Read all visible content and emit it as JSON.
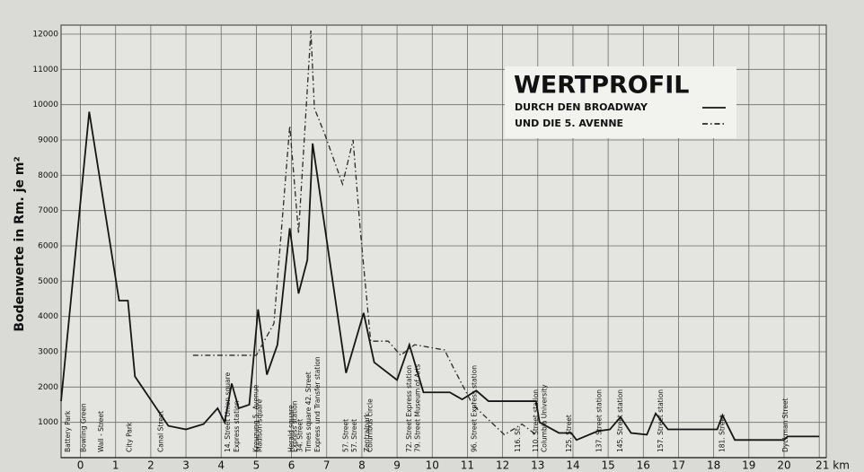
{
  "chart_data": {
    "type": "line",
    "title": "WERTPROFIL",
    "ylabel": "Bodenwerte in Rm. je m²",
    "xlim": [
      -0.55,
      21.2
    ],
    "ylim": [
      0,
      12000
    ],
    "xticks": [
      0,
      1,
      2,
      3,
      4,
      5,
      6,
      7,
      8,
      9,
      10,
      11,
      12,
      13,
      14,
      15,
      16,
      17,
      18,
      19,
      20,
      {
        "value": 21,
        "label": "21 km"
      }
    ],
    "yticks": [
      1000,
      2000,
      3000,
      4000,
      5000,
      6000,
      7000,
      8000,
      9000,
      10000,
      11000,
      12000
    ],
    "grid": true,
    "series": [
      {
        "name": "DURCH DEN BROADWAY",
        "color": "#151515",
        "dash": "solid",
        "x": [
          -0.55,
          0.25,
          1.1,
          1.35,
          1.55,
          2.5,
          3,
          3.5,
          3.9,
          4.1,
          4.3,
          4.5,
          4.8,
          5.05,
          5.3,
          5.6,
          5.95,
          6.2,
          6.45,
          6.6,
          7.55,
          8.05,
          8.35,
          9,
          9.35,
          9.75,
          10.5,
          10.85,
          11.25,
          11.6,
          12.95,
          13.05,
          13.6,
          13.95,
          14.1,
          14.7,
          15.05,
          15.35,
          15.65,
          16.1,
          16.35,
          16.7,
          18.1,
          18.25,
          18.6,
          20,
          20.1,
          21
        ],
        "values": [
          1600,
          9800,
          4450,
          4450,
          2300,
          900,
          800,
          950,
          1400,
          1000,
          2100,
          1400,
          1500,
          4200,
          2350,
          3200,
          6500,
          4650,
          5600,
          8900,
          2400,
          4100,
          2700,
          2200,
          3200,
          1850,
          1850,
          1650,
          1900,
          1600,
          1600,
          1000,
          700,
          700,
          500,
          750,
          800,
          1150,
          700,
          650,
          1250,
          800,
          800,
          1200,
          500,
          500,
          600,
          600
        ]
      },
      {
        "name": "UND DIE 5. AVENNE",
        "color": "#2a2a2a",
        "dash": "dashdot",
        "x": [
          3.2,
          5,
          5.5,
          5.95,
          6.2,
          6.55,
          6.65,
          6.95,
          7.45,
          7.75,
          7.95,
          8.25,
          8.75,
          9.1,
          9.5,
          10.35,
          10.6,
          11.15,
          12.05,
          12.55,
          12.95
        ],
        "values": [
          2900,
          2900,
          3800,
          9400,
          6350,
          12100,
          9900,
          9150,
          7750,
          9000,
          6500,
          3300,
          3300,
          2900,
          3200,
          3050,
          2550,
          1500,
          650,
          950,
          650
        ]
      }
    ],
    "annotations": [
      {
        "text": "Battery Park",
        "x": -0.35
      },
      {
        "text": "Bowling Green",
        "x": 0.1
      },
      {
        "text": "Wall - Street",
        "x": 0.6
      },
      {
        "text": "City Park",
        "x": 1.4
      },
      {
        "text": "Canal Street",
        "x": 2.3
      },
      {
        "text": "14. Street Union square",
        "x": 4.2
      },
      {
        "text": "Express station",
        "x": 4.45
      },
      {
        "text": "Madison square",
        "x": 5.1
      },
      {
        "text": "Kreuzung 5. Avenue",
        "x": 5.0
      },
      {
        "text": "Herald square",
        "x": 6.0
      },
      {
        "text": "34. Street",
        "x": 6.25
      },
      {
        "text": "Express station",
        "x": 6.1
      },
      {
        "text": "Times square 42. Street",
        "x": 6.5
      },
      {
        "text": "Express und Transfer station",
        "x": 6.75
      },
      {
        "text": "57. Street",
        "x": 7.55
      },
      {
        "text": "57. Street",
        "x": 7.8
      },
      {
        "text": "Zentralpark",
        "x": 8.15
      },
      {
        "text": "Columbus circle",
        "x": 8.25
      },
      {
        "text": "72. Street Express station",
        "x": 9.35
      },
      {
        "text": "79. Street Museum of Arts",
        "x": 9.6
      },
      {
        "text": "96. Street Express station",
        "x": 11.2
      },
      {
        "text": "116. St.",
        "x": 12.45
      },
      {
        "text": "110. Street station",
        "x": 12.95
      },
      {
        "text": "Columbia University",
        "x": 13.2
      },
      {
        "text": "125. Street",
        "x": 13.9
      },
      {
        "text": "137. Street station",
        "x": 14.75
      },
      {
        "text": "145. Street station",
        "x": 15.35
      },
      {
        "text": "157. Street station",
        "x": 16.5
      },
      {
        "text": "181. Street",
        "x": 18.25
      },
      {
        "text": "Dyckman Street",
        "x": 20.05
      }
    ]
  }
}
